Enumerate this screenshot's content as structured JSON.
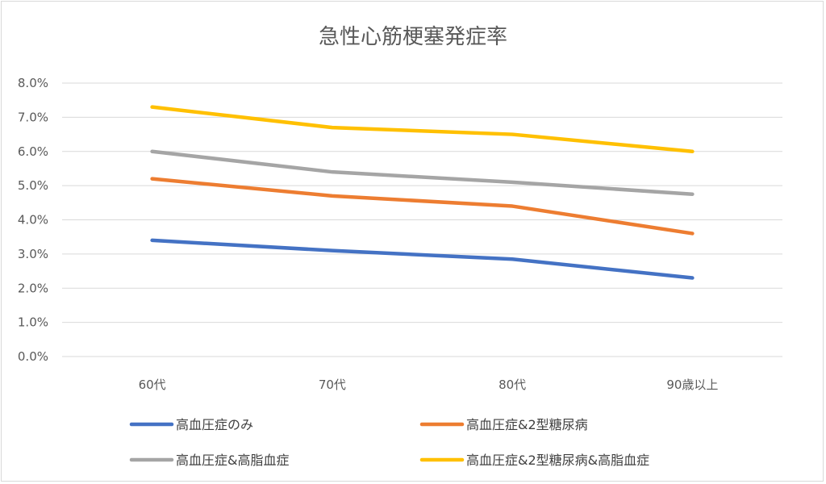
{
  "chart_data": {
    "type": "line",
    "title": "急性心筋梗塞発症率",
    "xlabel": "",
    "ylabel": "",
    "categories": [
      "60代",
      "70代",
      "80代",
      "90歳以上"
    ],
    "ylim": [
      0,
      0.08
    ],
    "yticks": [
      0,
      0.01,
      0.02,
      0.03,
      0.04,
      0.05,
      0.06,
      0.07,
      0.08
    ],
    "ytick_labels": [
      "0.0%",
      "1.0%",
      "2.0%",
      "3.0%",
      "4.0%",
      "5.0%",
      "6.0%",
      "7.0%",
      "8.0%"
    ],
    "grid": true,
    "legend_position": "bottom",
    "series": [
      {
        "name": "高血圧症のみ",
        "color": "#4472c4",
        "values": [
          0.034,
          0.031,
          0.0285,
          0.023
        ]
      },
      {
        "name": "高血圧症&2型糖尿病",
        "color": "#ed7d31",
        "values": [
          0.052,
          0.047,
          0.044,
          0.036
        ]
      },
      {
        "name": "高血圧症&高脂血症",
        "color": "#a5a5a5",
        "values": [
          0.06,
          0.054,
          0.051,
          0.0475
        ]
      },
      {
        "name": "高血圧症&2型糖尿病&高脂血症",
        "color": "#ffc000",
        "values": [
          0.073,
          0.067,
          0.065,
          0.06
        ]
      }
    ]
  }
}
